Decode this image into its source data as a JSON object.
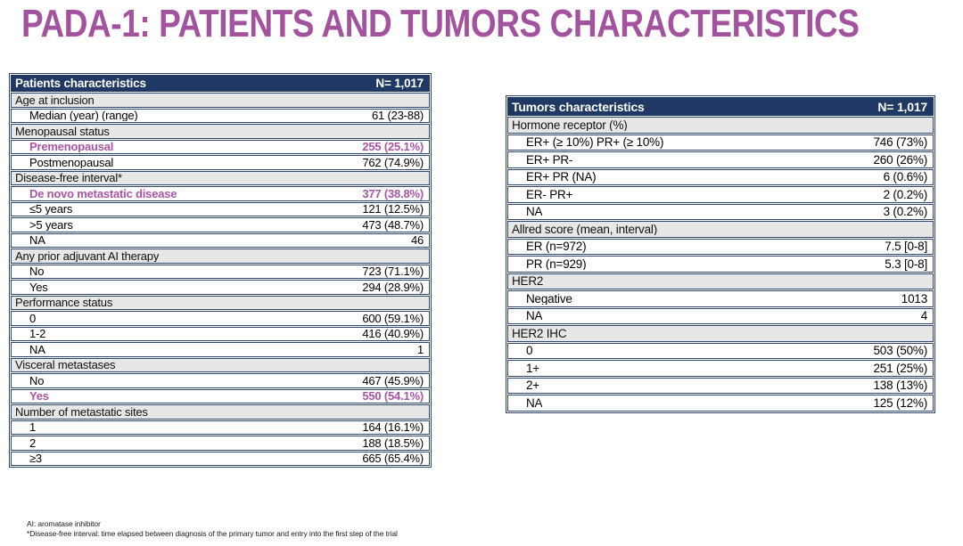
{
  "title": "PADA-1: PATIENTS AND TUMORS CHARACTERISTICS",
  "colors": {
    "title_purple": "#A3539E",
    "highlight_purple": "#AA55A4",
    "header_navy": "#1F3864",
    "border_navy": "#31476F",
    "section_gray": "#E8E7E7"
  },
  "patients_table": {
    "header": {
      "label": "Patients characteristics",
      "n": "N= 1,017"
    },
    "rows": [
      {
        "type": "section",
        "label": "Age at inclusion"
      },
      {
        "type": "data",
        "label": "Median (year) (range)",
        "value": "61 (23-88)"
      },
      {
        "type": "section",
        "label": "Menopausal status"
      },
      {
        "type": "data",
        "label": "Premenopausal",
        "value": "255 (25.1%)",
        "highlight": true
      },
      {
        "type": "data",
        "label": "Postmenopausal",
        "value": "762 (74.9%)"
      },
      {
        "type": "section",
        "label": "Disease-free interval*"
      },
      {
        "type": "data",
        "label": "De novo metastatic disease",
        "value": "377 (38.8%)",
        "highlight": true
      },
      {
        "type": "data",
        "label": "≤5 years",
        "value": "121 (12.5%)"
      },
      {
        "type": "data",
        "label": ">5 years",
        "value": "473 (48.7%)"
      },
      {
        "type": "data",
        "label": "NA",
        "value": "46"
      },
      {
        "type": "section",
        "label": "Any prior adjuvant AI therapy"
      },
      {
        "type": "data",
        "label": "No",
        "value": "723 (71.1%)"
      },
      {
        "type": "data",
        "label": "Yes",
        "value": "294 (28.9%)"
      },
      {
        "type": "section",
        "label": "Performance status"
      },
      {
        "type": "data",
        "label": "0",
        "value": "600 (59.1%)"
      },
      {
        "type": "data",
        "label": "1-2",
        "value": "416 (40.9%)"
      },
      {
        "type": "data",
        "label": "NA",
        "value": "1"
      },
      {
        "type": "section",
        "label": "Visceral metastases"
      },
      {
        "type": "data",
        "label": "No",
        "value": "467 (45.9%)"
      },
      {
        "type": "data",
        "label": "Yes",
        "value": "550 (54.1%)",
        "highlight": true
      },
      {
        "type": "section",
        "label": "Number of metastatic sites"
      },
      {
        "type": "data",
        "label": "1",
        "value": "164 (16.1%)"
      },
      {
        "type": "data",
        "label": "2",
        "value": "188 (18.5%)"
      },
      {
        "type": "data",
        "label": "≥3",
        "value": "665 (65.4%)"
      }
    ]
  },
  "tumors_table": {
    "header": {
      "label": "Tumors characteristics",
      "n": "N= 1,017"
    },
    "rows": [
      {
        "type": "section",
        "label": "Hormone receptor (%)"
      },
      {
        "type": "data",
        "label": "ER+ (≥ 10%) PR+ (≥ 10%)",
        "value": "746 (73%)"
      },
      {
        "type": "data",
        "label": "ER+ PR-",
        "value": "260 (26%)"
      },
      {
        "type": "data",
        "label": "ER+ PR (NA)",
        "value": "6 (0.6%)"
      },
      {
        "type": "data",
        "label": "ER- PR+",
        "value": "2 (0.2%)"
      },
      {
        "type": "data",
        "label": "NA",
        "value": "3 (0.2%)"
      },
      {
        "type": "section",
        "label": "Allred score (mean, interval)"
      },
      {
        "type": "data",
        "label": "ER (n=972)",
        "value": "7.5 [0-8]"
      },
      {
        "type": "data",
        "label": "PR (n=929)",
        "value": "5.3 [0-8]"
      },
      {
        "type": "section",
        "label": "HER2"
      },
      {
        "type": "data",
        "label": "Negative",
        "value": "1013"
      },
      {
        "type": "data",
        "label": "NA",
        "value": "4"
      },
      {
        "type": "section",
        "label": "HER2 IHC"
      },
      {
        "type": "data",
        "label": "0",
        "value": "503 (50%)"
      },
      {
        "type": "data",
        "label": "1+",
        "value": "251 (25%)"
      },
      {
        "type": "data",
        "label": "2+",
        "value": "138 (13%)"
      },
      {
        "type": "data",
        "label": "NA",
        "value": "125 (12%)"
      }
    ]
  },
  "footnotes": {
    "line1": "AI: aromatase inhibitor",
    "line2": "*Disease-free interval: time elapsed between diagnosis of the primary tumor and entry into the first step of the trial"
  }
}
